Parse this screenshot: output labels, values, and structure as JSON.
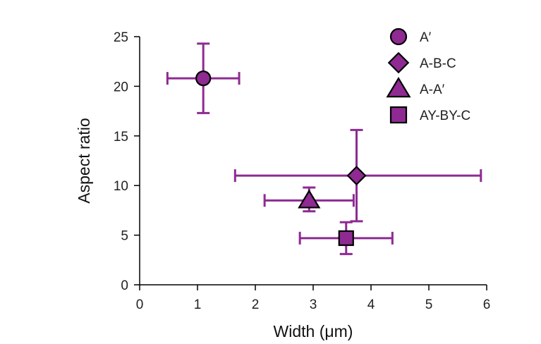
{
  "chart_data": {
    "type": "scatter",
    "title": "",
    "xlabel": "Width (μm)",
    "ylabel": "Aspect ratio",
    "xlim": [
      0,
      6
    ],
    "ylim": [
      0,
      25
    ],
    "xticks": [
      "0",
      "1",
      "2",
      "3",
      "4",
      "5",
      "6"
    ],
    "yticks": [
      "0",
      "5",
      "10",
      "15",
      "20",
      "25"
    ],
    "grid": false,
    "legend_position": "top-right",
    "series": [
      {
        "name": "A′",
        "marker": "circle",
        "x": 1.1,
        "y": 20.8,
        "x_err": 0.62,
        "y_err_low": 3.5,
        "y_err_high": 3.5
      },
      {
        "name": "A-B-C",
        "marker": "diamond",
        "x": 3.75,
        "y": 11.0,
        "x_err_low": 2.1,
        "x_err_high": 2.15,
        "y_err_low": 4.6,
        "y_err_high": 4.6
      },
      {
        "name": "A-A′",
        "marker": "triangle",
        "x": 2.93,
        "y": 8.5,
        "x_err": 0.77,
        "y_err_low": 1.1,
        "y_err_high": 1.3
      },
      {
        "name": "AY-BY-C",
        "marker": "square",
        "x": 3.57,
        "y": 4.7,
        "x_err": 0.8,
        "y_err": 1.6
      }
    ],
    "colors": {
      "marker_fill": "#8e2a92",
      "error_bar": "#8e2a92",
      "marker_edge": "#000000"
    }
  }
}
